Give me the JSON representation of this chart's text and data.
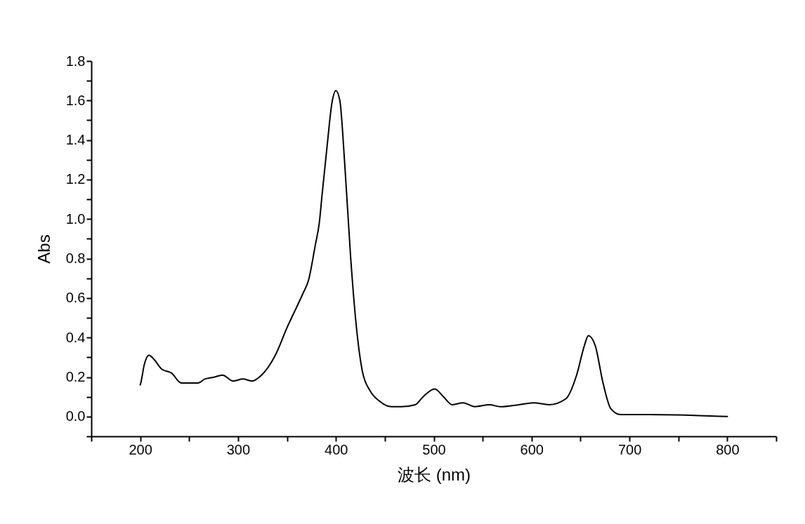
{
  "chart_data": {
    "type": "line",
    "xlabel": "波长 (nm)",
    "ylabel": "Abs",
    "xlim": [
      150,
      850
    ],
    "xticks": [
      {
        "value": 150,
        "label": null
      },
      200,
      {
        "value": 250,
        "label": null
      },
      300,
      {
        "value": 350,
        "label": null
      },
      400,
      {
        "value": 450,
        "label": null
      },
      500,
      {
        "value": 550,
        "label": null
      },
      600,
      {
        "value": 650,
        "label": null
      },
      700,
      {
        "value": 750,
        "label": null
      },
      800,
      {
        "value": 850,
        "label": null
      }
    ],
    "ylim": [
      -0.1,
      1.8
    ],
    "yticks": [
      {
        "value": -0.1,
        "label": null
      },
      {
        "value": 0,
        "label": "0.0"
      },
      {
        "value": 0.1,
        "label": null
      },
      0.2,
      {
        "value": 0.3,
        "label": null
      },
      0.4,
      {
        "value": 0.5,
        "label": null
      },
      0.6,
      {
        "value": 0.7,
        "label": null
      },
      0.8,
      {
        "value": 0.9,
        "label": null
      },
      {
        "value": 1,
        "label": "1.0"
      },
      {
        "value": 1.1,
        "label": null
      },
      1.2,
      {
        "value": 1.3,
        "label": null
      },
      1.4,
      {
        "value": 1.5,
        "label": null
      },
      1.6,
      {
        "value": 1.7,
        "label": null
      },
      1.8
    ],
    "grid": false,
    "marker": "none",
    "line_style": "solid",
    "series": [
      {
        "color": "#000000",
        "x": [
          200,
          201,
          204,
          209,
          214,
          222,
          232,
          242,
          250,
          259,
          266,
          276,
          284,
          295,
          305,
          314,
          324,
          338,
          350,
          366,
          372,
          379,
          383,
          386,
          391,
          396,
          400,
          404,
          409,
          415,
          421,
          427,
          435,
          444,
          457,
          467,
          481,
          489,
          501,
          510,
          519,
          530,
          542,
          557,
          568,
          587,
          602,
          618,
          635,
          646,
          654,
          658,
          665,
          673,
          681,
          691,
          720,
          800
        ],
        "values": [
          0.16,
          0.18,
          0.26,
          0.31,
          0.29,
          0.24,
          0.22,
          0.17,
          0.17,
          0.17,
          0.19,
          0.2,
          0.21,
          0.18,
          0.19,
          0.18,
          0.21,
          0.31,
          0.45,
          0.62,
          0.69,
          0.87,
          0.98,
          1.13,
          1.37,
          1.59,
          1.65,
          1.6,
          1.28,
          0.81,
          0.45,
          0.23,
          0.13,
          0.08,
          0.05,
          0.05,
          0.06,
          0.1,
          0.14,
          0.1,
          0.06,
          0.07,
          0.05,
          0.06,
          0.05,
          0.06,
          0.07,
          0.06,
          0.09,
          0.21,
          0.36,
          0.41,
          0.36,
          0.17,
          0.04,
          0.01,
          0.01,
          0.0
        ]
      }
    ]
  }
}
